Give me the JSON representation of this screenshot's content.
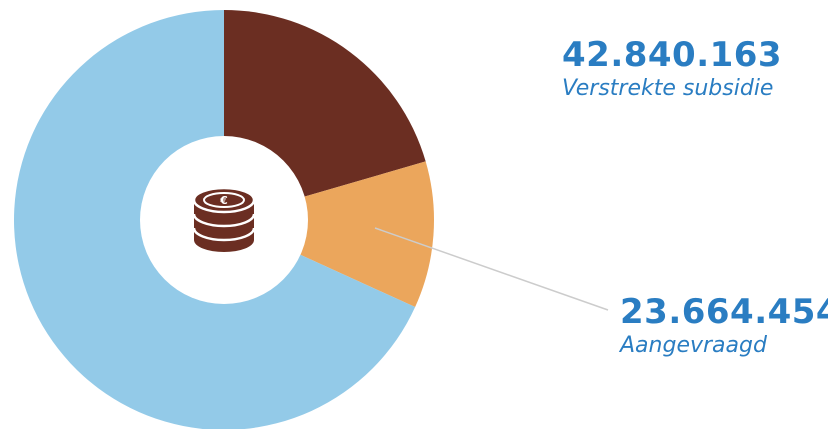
{
  "chart_data": {
    "type": "pie",
    "slices": [
      {
        "label": "",
        "value": 0.205,
        "color": "#6B2E22"
      },
      {
        "label": "",
        "value": 0.113,
        "color": "#EBA65C"
      },
      {
        "label": "",
        "value": 0.682,
        "color": "#93CAE8"
      }
    ],
    "annotations": [
      {
        "value": "42.840.163",
        "caption": "Verstrekte subsidie"
      },
      {
        "value": "23.664.454",
        "caption": "Aangevraagd"
      }
    ]
  },
  "colors": {
    "label_text": "#2A7DC2",
    "leader_line": "#CCCCCC",
    "hole": "#FFFFFF",
    "icon": "#6B2E22"
  },
  "icon": "coin-stack-euro-icon"
}
